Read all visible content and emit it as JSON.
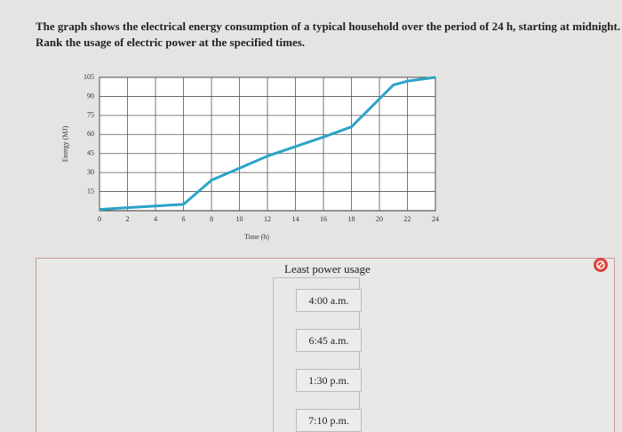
{
  "question": {
    "lines": [
      "The graph shows the electrical energy consumption of a typical household over the period of 24 h, starting at midnight.",
      "Rank the usage of electric power at the specified times."
    ]
  },
  "chart_data": {
    "type": "line",
    "xlabel": "Time (h)",
    "ylabel": "Energy (MJ)",
    "x": [
      0,
      6,
      8,
      12,
      16,
      18,
      21,
      22,
      24
    ],
    "series": [
      {
        "color": "#2ba3c9",
        "values": [
          1,
          5,
          24,
          43,
          58,
          66,
          99,
          102,
          105
        ]
      }
    ],
    "xlim": [
      0,
      24
    ],
    "ylim": [
      0,
      105
    ],
    "xticks": [
      0,
      2,
      4,
      6,
      8,
      10,
      12,
      14,
      16,
      18,
      20,
      22,
      24
    ],
    "yticks": [
      15,
      30,
      45,
      60,
      75,
      90,
      105
    ],
    "grid": true
  },
  "ranking": {
    "title": "Least power usage",
    "items": [
      "4:00 a.m.",
      "6:45 a.m.",
      "1:30 p.m.",
      "7:10 p.m."
    ]
  }
}
